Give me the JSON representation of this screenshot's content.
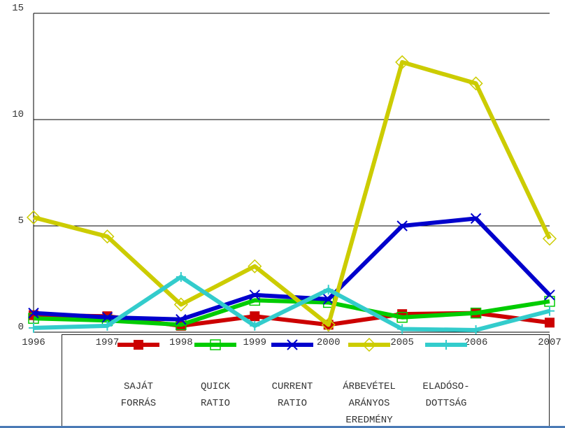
{
  "chart_data": {
    "type": "line",
    "categories": [
      "1996",
      "1997",
      "1998",
      "1999",
      "2000",
      "2005",
      "2006",
      "2007"
    ],
    "series": [
      {
        "name": "SAJÁT\nFORRÁS",
        "color": "#cc0000",
        "marker": "square",
        "values": [
          0.8,
          0.75,
          0.3,
          0.75,
          0.35,
          0.85,
          0.9,
          0.45
        ]
      },
      {
        "name": "QUICK\nRATIO",
        "color": "#00cc00",
        "marker": "square-open",
        "values": [
          0.65,
          0.55,
          0.35,
          1.5,
          1.4,
          0.7,
          0.9,
          1.45
        ]
      },
      {
        "name": "CURRENT\nRATIO",
        "color": "#0000cc",
        "marker": "x",
        "values": [
          0.9,
          0.7,
          0.6,
          1.75,
          1.55,
          5.0,
          5.35,
          1.75
        ]
      },
      {
        "name": "ÁRBEVÉTEL\nARÁNYOS\nEREDMÉNY",
        "color": "#cccc00",
        "marker": "diamond-open",
        "values": [
          5.4,
          4.5,
          1.3,
          3.1,
          0.35,
          12.7,
          11.7,
          4.4
        ]
      },
      {
        "name": "ELADÓSO-\nDOTTSÁG",
        "color": "#33cccc",
        "marker": "plus",
        "values": [
          0.2,
          0.3,
          2.6,
          0.3,
          2.0,
          0.15,
          0.1,
          1.0
        ]
      }
    ],
    "ylim": [
      0,
      15
    ],
    "yticks": [
      0,
      5,
      10,
      15
    ],
    "grid": true
  }
}
